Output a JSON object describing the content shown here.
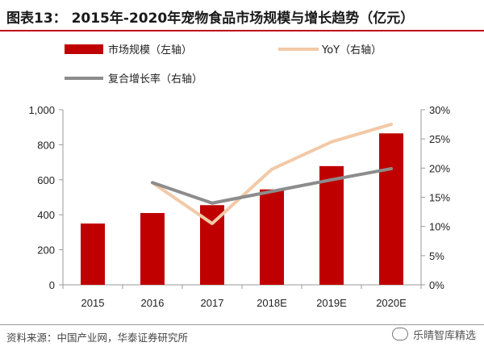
{
  "title": "图表13： 2015年-2020年宠物食品市场规模与增长趋势（亿元）",
  "source": "资料来源：中国产业网，华泰证券研究所",
  "watermark": "乐晴智库精选",
  "chart_data": {
    "type": "bar",
    "categories": [
      "2015",
      "2016",
      "2017",
      "2018E",
      "2019E",
      "2020E"
    ],
    "series": [
      {
        "name": "市场规模（左轴）",
        "kind": "bar",
        "axis": "left",
        "color": "#c00000",
        "values": [
          350,
          410,
          455,
          545,
          678,
          865
        ]
      },
      {
        "name": "YoY（右轴）",
        "kind": "line",
        "axis": "right",
        "color": "#f2c9a7",
        "values": [
          null,
          17.5,
          10.5,
          19.8,
          24.5,
          27.5
        ]
      },
      {
        "name": "复合增长率（右轴）",
        "kind": "line",
        "axis": "right",
        "color": "#8c8c8c",
        "values": [
          null,
          17.5,
          14.0,
          16.0,
          18.0,
          19.9
        ]
      }
    ],
    "ylim_left": [
      0,
      1000
    ],
    "yticks_left": [
      "0",
      "200",
      "400",
      "600",
      "800",
      "1,000"
    ],
    "ylim_right": [
      0,
      30
    ],
    "yticks_right": [
      "0%",
      "5%",
      "10%",
      "15%",
      "20%",
      "25%",
      "30%"
    ],
    "legend": [
      "市场规模（左轴）",
      "YoY（右轴）",
      "复合增长率（右轴）"
    ],
    "legend_position": "top"
  }
}
